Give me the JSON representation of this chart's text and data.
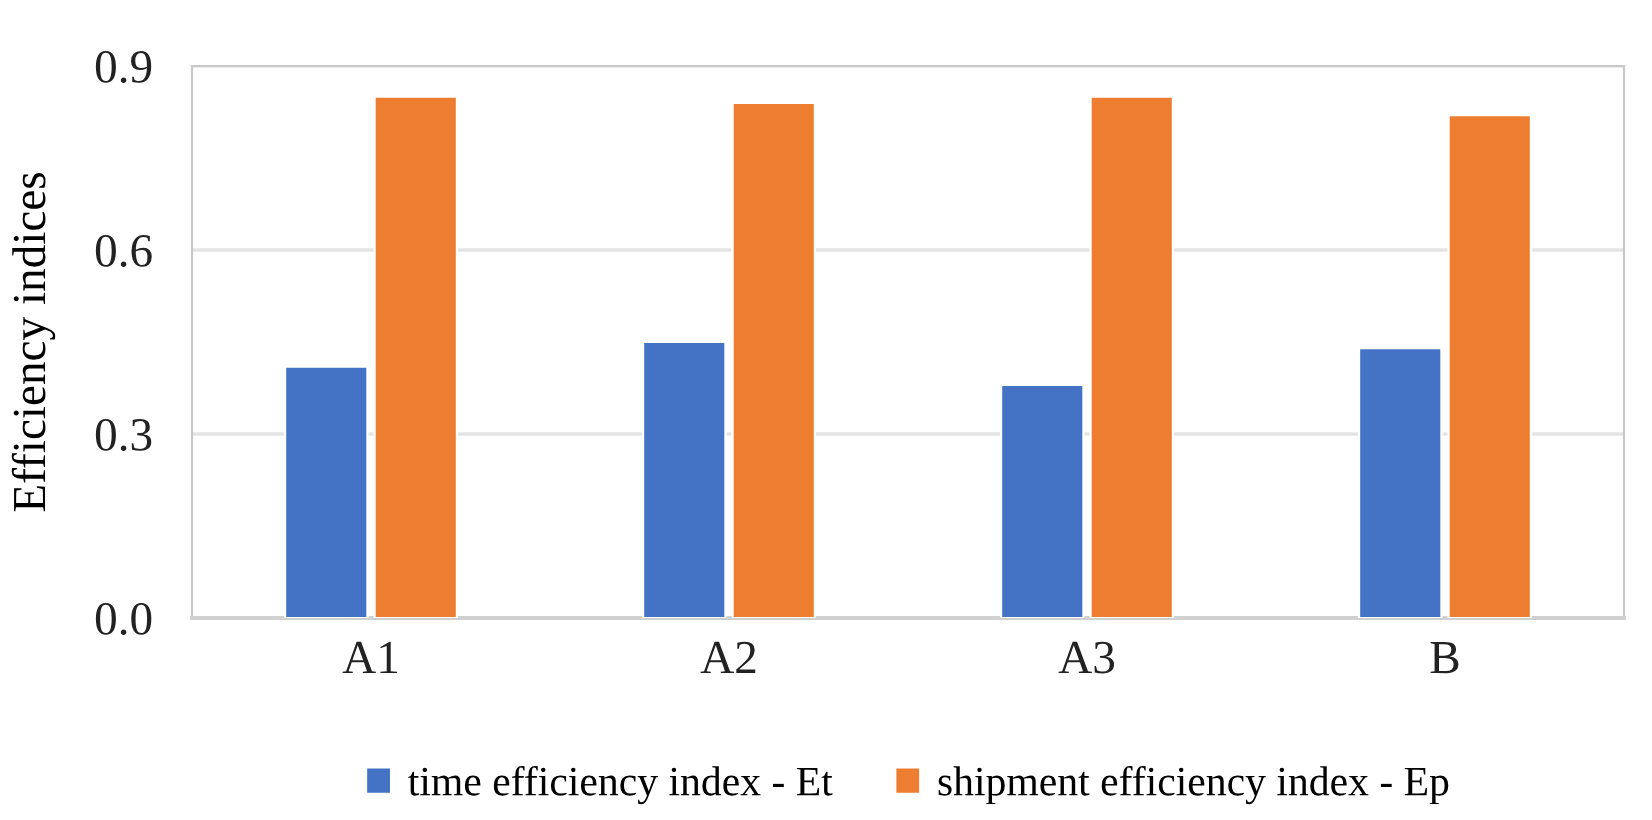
{
  "chart_data": {
    "type": "bar",
    "ylabel": "Efficiency indices",
    "categories": [
      "A1",
      "A2",
      "A3",
      "B"
    ],
    "series": [
      {
        "name": "time efficiency index - Et",
        "color": "#4472c4",
        "values": [
          0.41,
          0.45,
          0.38,
          0.44
        ]
      },
      {
        "name": "shipment efficiency index - Ep",
        "color": "#ed7d31",
        "values": [
          0.85,
          0.84,
          0.85,
          0.82
        ]
      }
    ],
    "ylim": [
      0,
      0.9
    ],
    "yticks": [
      {
        "value": 0,
        "label": "0.0"
      },
      0.3,
      0.6,
      0.9
    ],
    "grid": "y",
    "legend": "bottom"
  }
}
